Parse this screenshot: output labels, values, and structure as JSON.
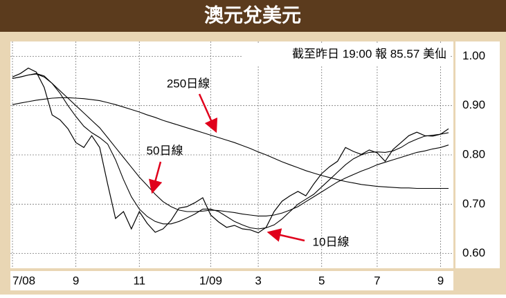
{
  "chart_data": {
    "type": "line",
    "title": "澳元兌美元",
    "subtitle": "截至昨日 19:00 報 85.57 美仙",
    "categories": [
      "7/08",
      null,
      null,
      null,
      null,
      null,
      null,
      null,
      "9",
      null,
      null,
      null,
      null,
      null,
      null,
      null,
      "11",
      null,
      null,
      null,
      null,
      null,
      null,
      null,
      null,
      "1/09",
      null,
      null,
      null,
      null,
      null,
      "3",
      null,
      null,
      null,
      null,
      null,
      null,
      null,
      "5",
      null,
      null,
      null,
      null,
      null,
      null,
      "7",
      null,
      null,
      null,
      null,
      null,
      null,
      null,
      "9",
      null
    ],
    "series": [
      {
        "color": "#000000",
        "values": [
          0.958,
          0.965,
          0.976,
          0.968,
          0.937,
          0.881,
          0.871,
          0.853,
          0.825,
          0.815,
          0.839,
          0.815,
          0.741,
          0.671,
          0.685,
          0.65,
          0.685,
          0.661,
          0.643,
          0.65,
          0.667,
          0.692,
          0.695,
          0.703,
          0.713,
          0.678,
          0.664,
          0.653,
          0.657,
          0.65,
          0.648,
          0.642,
          0.653,
          0.685,
          0.706,
          0.717,
          0.726,
          0.717,
          0.741,
          0.762,
          0.776,
          0.787,
          0.815,
          0.807,
          0.801,
          0.81,
          0.804,
          0.787,
          0.811,
          0.825,
          0.839,
          0.846,
          0.839,
          0.838,
          0.842,
          0.853
        ]
      },
      {
        "name": "10日線",
        "color": "#000000",
        "values": [
          0.955,
          0.958,
          0.962,
          0.965,
          0.96,
          0.945,
          0.925,
          0.9,
          0.878,
          0.858,
          0.845,
          0.835,
          0.822,
          0.79,
          0.75,
          0.715,
          0.69,
          0.675,
          0.665,
          0.66,
          0.66,
          0.665,
          0.672,
          0.68,
          0.69,
          0.69,
          0.685,
          0.675,
          0.665,
          0.658,
          0.652,
          0.65,
          0.652,
          0.658,
          0.67,
          0.685,
          0.7,
          0.71,
          0.72,
          0.735,
          0.75,
          0.765,
          0.78,
          0.792,
          0.8,
          0.805,
          0.806,
          0.805,
          0.808,
          0.815,
          0.825,
          0.832,
          0.838,
          0.84,
          0.842,
          0.845
        ]
      },
      {
        "name": "50日線",
        "color": "#000000",
        "values": [
          0.955,
          0.958,
          0.962,
          0.964,
          0.958,
          0.945,
          0.93,
          0.915,
          0.9,
          0.885,
          0.87,
          0.855,
          0.835,
          0.815,
          0.795,
          0.775,
          0.755,
          0.738,
          0.72,
          0.705,
          0.695,
          0.688,
          0.685,
          0.685,
          0.686,
          0.688,
          0.687,
          0.685,
          0.683,
          0.68,
          0.678,
          0.676,
          0.676,
          0.678,
          0.682,
          0.688,
          0.695,
          0.705,
          0.715,
          0.725,
          0.735,
          0.745,
          0.753,
          0.76,
          0.767,
          0.773,
          0.78,
          0.785,
          0.79,
          0.795,
          0.8,
          0.805,
          0.808,
          0.812,
          0.815,
          0.82
        ]
      },
      {
        "name": "250日線",
        "color": "#000000",
        "values": [
          0.902,
          0.905,
          0.908,
          0.911,
          0.913,
          0.915,
          0.916,
          0.916,
          0.915,
          0.914,
          0.912,
          0.91,
          0.906,
          0.902,
          0.897,
          0.892,
          0.887,
          0.881,
          0.876,
          0.87,
          0.865,
          0.86,
          0.855,
          0.85,
          0.845,
          0.84,
          0.835,
          0.83,
          0.825,
          0.819,
          0.813,
          0.806,
          0.8,
          0.793,
          0.786,
          0.78,
          0.774,
          0.768,
          0.763,
          0.758,
          0.754,
          0.75,
          0.746,
          0.743,
          0.74,
          0.738,
          0.736,
          0.735,
          0.734,
          0.733,
          0.733,
          0.732,
          0.732,
          0.732,
          0.732,
          0.732
        ]
      }
    ],
    "ylim": [
      0.57,
      1.03
    ],
    "yticks": [
      {
        "value": 0.6,
        "label": "0.60"
      },
      {
        "value": 0.7,
        "label": "0.70"
      },
      {
        "value": 0.8,
        "label": "0.80"
      },
      {
        "value": 0.9,
        "label": "0.90"
      },
      {
        "value": 1.0,
        "label": "1.00"
      }
    ],
    "grid": true
  }
}
